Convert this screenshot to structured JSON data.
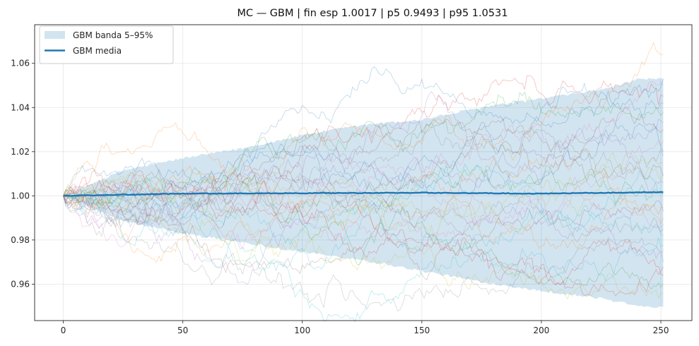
{
  "chart_data": {
    "type": "line",
    "title": "MC — GBM | fin esp 1.0017 | p5 0.9493 | p95 1.0531",
    "xlabel": "",
    "ylabel": "",
    "xlim": [
      -12,
      263
    ],
    "ylim": [
      0.9435,
      1.0775
    ],
    "x_ticks": [
      0,
      50,
      100,
      150,
      200,
      250
    ],
    "x_tick_labels": [
      "0",
      "50",
      "100",
      "150",
      "200",
      "250"
    ],
    "y_ticks": [
      0.96,
      0.98,
      1.0,
      1.02,
      1.04,
      1.06
    ],
    "y_tick_labels": [
      "0.96",
      "0.98",
      "1.00",
      "1.02",
      "1.04",
      "1.06"
    ],
    "grid": true,
    "legend_position": "top-left",
    "legend": [
      {
        "label": "GBM banda 5–95%",
        "kind": "band",
        "color": "#1f77b4"
      },
      {
        "label": "GBM media",
        "kind": "line",
        "color": "#1f77b4"
      }
    ],
    "n_steps": 251,
    "band": {
      "name": "GBM banda 5–95%",
      "color": "#1f77b4",
      "upper_keypoints": [
        [
          0,
          1.0
        ],
        [
          25,
          1.0115
        ],
        [
          50,
          1.017
        ],
        [
          75,
          1.0215
        ],
        [
          100,
          1.0275
        ],
        [
          125,
          1.032
        ],
        [
          150,
          1.0345
        ],
        [
          175,
          1.04
        ],
        [
          200,
          1.044
        ],
        [
          225,
          1.048
        ],
        [
          240,
          1.0525
        ],
        [
          251,
          1.0531
        ]
      ],
      "lower_keypoints": [
        [
          0,
          1.0
        ],
        [
          25,
          0.9885
        ],
        [
          50,
          0.983
        ],
        [
          75,
          0.979
        ],
        [
          100,
          0.9745
        ],
        [
          125,
          0.971
        ],
        [
          150,
          0.966
        ],
        [
          175,
          0.961
        ],
        [
          200,
          0.957
        ],
        [
          225,
          0.9535
        ],
        [
          240,
          0.9505
        ],
        [
          251,
          0.9493
        ]
      ]
    },
    "mean": {
      "name": "GBM media",
      "color": "#1f77b4",
      "keypoints": [
        [
          0,
          1.0
        ],
        [
          50,
          1.001
        ],
        [
          100,
          1.0012
        ],
        [
          150,
          1.0014
        ],
        [
          200,
          1.001
        ],
        [
          251,
          1.0017
        ]
      ]
    },
    "paths": {
      "count": 30,
      "colors": [
        "#1f77b4",
        "#ff7f0e",
        "#2ca02c",
        "#d62728",
        "#9467bd",
        "#8c564b",
        "#e377c2",
        "#7f7f7f",
        "#bcbd22",
        "#17becf"
      ],
      "end_values": [
        1.0531,
        1.064,
        0.96,
        1.045,
        0.97,
        1.03,
        1.05,
        0.985,
        1.01,
        0.978,
        1.02,
        0.99,
        1.038,
        0.964,
        1.006,
        0.993,
        1.025,
        0.975,
        1.015,
        0.982,
        1.042,
        0.995,
        1.001,
        0.968,
        1.033,
        1.009,
        0.987,
        1.018,
        0.956,
        1.002
      ]
    },
    "stats": {
      "fin_esp": 1.0017,
      "p5": 0.9493,
      "p95": 1.0531
    }
  }
}
